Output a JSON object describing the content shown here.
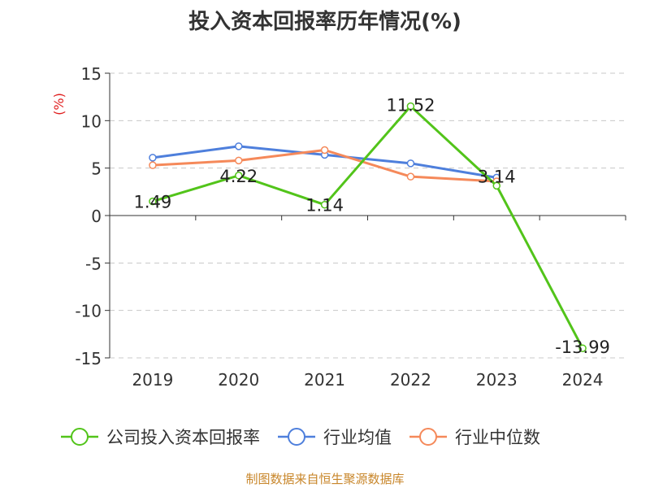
{
  "title": "投入资本回报率历年情况(%)",
  "source_note": "制图数据来自恒生聚源数据库",
  "chart_data": {
    "type": "line",
    "title": "投入资本回报率历年情况(%)",
    "ylabel": "(%)",
    "xlabel": "",
    "categories": [
      "2019",
      "2020",
      "2021",
      "2022",
      "2023",
      "2024"
    ],
    "ylim": [
      -15,
      15
    ],
    "yticks": [
      15,
      10,
      5,
      0,
      -5,
      -10,
      -15
    ],
    "grid": "horizontal-dashed",
    "legend": "bottom",
    "series": [
      {
        "name": "公司投入资本回报率",
        "color": "#52c41a",
        "values": [
          1.49,
          4.22,
          1.14,
          11.52,
          3.14,
          -13.99
        ],
        "labels": [
          "1.49",
          "4.22",
          "1.14",
          "11.52",
          "3.14",
          "-13.99"
        ]
      },
      {
        "name": "行业均值",
        "color": "#4e7fdc",
        "values": [
          6.1,
          7.3,
          6.4,
          5.5,
          4.0,
          null
        ]
      },
      {
        "name": "行业中位数",
        "color": "#f5895a",
        "values": [
          5.3,
          5.8,
          6.9,
          4.1,
          3.6,
          null
        ]
      }
    ]
  }
}
